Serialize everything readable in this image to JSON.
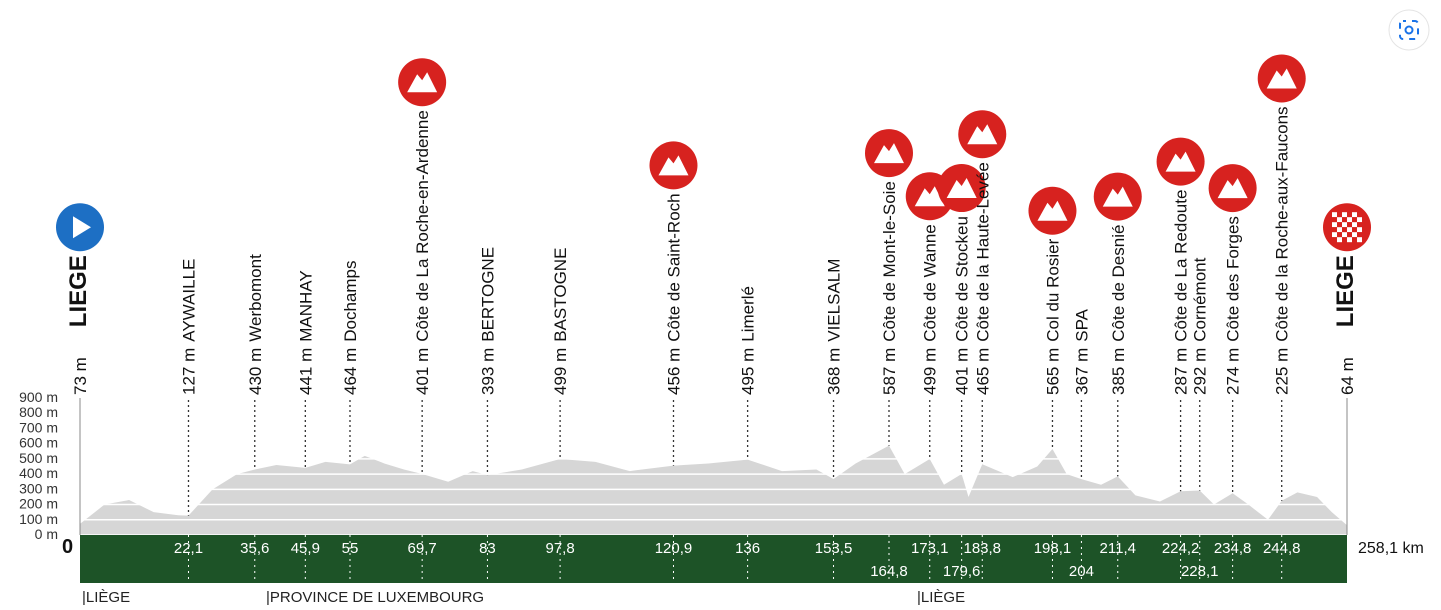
{
  "chart_data": {
    "type": "profile",
    "xlim": [
      0,
      258.1
    ],
    "ylim": [
      0,
      900
    ],
    "yticks": [
      {
        "value": 0,
        "label": "0 m"
      },
      {
        "value": 100,
        "label": "100 m"
      },
      {
        "value": 200,
        "label": "200 m"
      },
      {
        "value": 300,
        "label": "300 m"
      },
      {
        "value": 400,
        "label": "400 m"
      },
      {
        "value": 500,
        "label": "500 m"
      },
      {
        "value": 600,
        "label": "600 m"
      },
      {
        "value": 700,
        "label": "700 m"
      },
      {
        "value": 800,
        "label": "800 m"
      },
      {
        "value": 900,
        "label": "900 m"
      }
    ],
    "color": "#d6d6d6",
    "profile": {
      "km": [
        0,
        5,
        10,
        15,
        20,
        22.1,
        27,
        32,
        35.6,
        40,
        45.9,
        50,
        55,
        58,
        62,
        66,
        69.7,
        75,
        80,
        83,
        90,
        97.8,
        105,
        112,
        120.9,
        128,
        136,
        143,
        150,
        153.5,
        158,
        164.8,
        168,
        173.1,
        176,
        179.6,
        181,
        183.8,
        190,
        195,
        198.1,
        201,
        204,
        208,
        211.4,
        215,
        220,
        224.2,
        228.1,
        231,
        234.8,
        238,
        242,
        244.8,
        248,
        252,
        255,
        258.1
      ],
      "elevation": [
        73,
        200,
        230,
        150,
        130,
        127,
        300,
        400,
        430,
        460,
        441,
        480,
        464,
        520,
        470,
        430,
        401,
        350,
        420,
        393,
        430,
        499,
        480,
        420,
        456,
        470,
        495,
        420,
        430,
        368,
        470,
        587,
        400,
        499,
        330,
        401,
        250,
        465,
        380,
        450,
        565,
        400,
        367,
        330,
        385,
        260,
        220,
        287,
        292,
        200,
        274,
        200,
        100,
        225,
        280,
        250,
        150,
        64
      ]
    },
    "waypoints": [
      {
        "name": "LIEGE",
        "elevation": 73,
        "elevation_label": "73 m",
        "km": 0,
        "km_label": "0",
        "climb": false
      },
      {
        "name": "AYWAILLE",
        "elevation": 127,
        "elevation_label": "127 m",
        "km": 22.1,
        "km_label": "22,1",
        "climb": false
      },
      {
        "name": "Werbomont",
        "elevation": 430,
        "elevation_label": "430 m",
        "km": 35.6,
        "km_label": "35,6",
        "climb": false
      },
      {
        "name": "MANHAY",
        "elevation": 441,
        "elevation_label": "441 m",
        "km": 45.9,
        "km_label": "45,9",
        "climb": false
      },
      {
        "name": "Dochamps",
        "elevation": 464,
        "elevation_label": "464 m",
        "km": 55,
        "km_label": "55",
        "climb": false
      },
      {
        "name": "Côte de La Roche-en-Ardenne",
        "elevation": 401,
        "elevation_label": "401 m",
        "km": 69.7,
        "km_label": "69,7",
        "climb": true
      },
      {
        "name": "BERTOGNE",
        "elevation": 393,
        "elevation_label": "393 m",
        "km": 83,
        "km_label": "83",
        "climb": false
      },
      {
        "name": "BASTOGNE",
        "elevation": 499,
        "elevation_label": "499 m",
        "km": 97.8,
        "km_label": "97,8",
        "climb": false
      },
      {
        "name": "Côte de Saint-Roch",
        "elevation": 456,
        "elevation_label": "456 m",
        "km": 120.9,
        "km_label": "120,9",
        "climb": true
      },
      {
        "name": "Limerlé",
        "elevation": 495,
        "elevation_label": "495 m",
        "km": 136,
        "km_label": "136",
        "climb": false
      },
      {
        "name": "VIELSALM",
        "elevation": 368,
        "elevation_label": "368 m",
        "km": 153.5,
        "km_label": "153,5",
        "climb": false
      },
      {
        "name": "Côte de Mont-le-Soie",
        "elevation": 587,
        "elevation_label": "587 m",
        "km": 164.8,
        "km_label": "164,8",
        "climb": true
      },
      {
        "name": "Côte de Wanne",
        "elevation": 499,
        "elevation_label": "499 m",
        "km": 173.1,
        "km_label": "173,1",
        "climb": true
      },
      {
        "name": "Côte de Stockeu",
        "elevation": 401,
        "elevation_label": "401 m",
        "km": 179.6,
        "km_label": "179,6",
        "climb": true
      },
      {
        "name": "Côte de la Haute-Levée",
        "elevation": 465,
        "elevation_label": "465 m",
        "km": 183.8,
        "km_label": "183,8",
        "climb": true
      },
      {
        "name": "Col du Rosier",
        "elevation": 565,
        "elevation_label": "565 m",
        "km": 198.1,
        "km_label": "198,1",
        "climb": true
      },
      {
        "name": "SPA",
        "elevation": 367,
        "elevation_label": "367 m",
        "km": 204,
        "km_label": "204",
        "climb": false
      },
      {
        "name": "Côte de Desnié",
        "elevation": 385,
        "elevation_label": "385 m",
        "km": 211.4,
        "km_label": "211,4",
        "climb": true
      },
      {
        "name": "Côte de La Redoute",
        "elevation": 287,
        "elevation_label": "287 m",
        "km": 224.2,
        "km_label": "224,2",
        "climb": true
      },
      {
        "name": "Cornémont",
        "elevation": 292,
        "elevation_label": "292 m",
        "km": 228.1,
        "km_label": "228,1",
        "climb": false
      },
      {
        "name": "Côte des Forges",
        "elevation": 274,
        "elevation_label": "274 m",
        "km": 234.8,
        "km_label": "234,8",
        "climb": true
      },
      {
        "name": "Côte de la Roche-aux-Faucons",
        "elevation": 225,
        "elevation_label": "225 m",
        "km": 244.8,
        "km_label": "244,8",
        "climb": true
      },
      {
        "name": "LIEGE",
        "elevation": 64,
        "elevation_label": "64 m",
        "km": 258.1,
        "km_label": "258,1 km",
        "climb": false
      }
    ],
    "regions": [
      "|LIÈGE",
      "|PROVINCE DE LUXEMBOURG",
      "|LIÈGE"
    ]
  }
}
